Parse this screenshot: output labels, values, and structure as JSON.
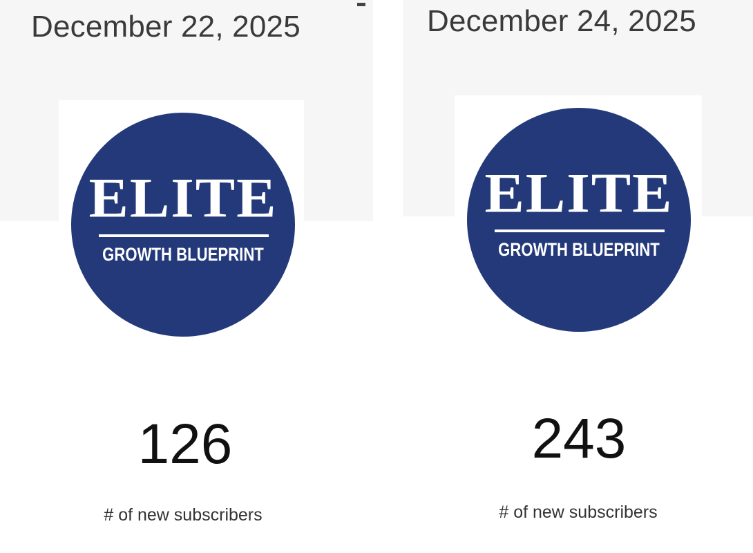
{
  "panels": [
    {
      "date": "December 22, 2025",
      "logo": {
        "title": "ELITE",
        "subtitle": "GROWTH BLUEPRINT"
      },
      "count": "126",
      "count_label": "# of new subscribers"
    },
    {
      "date": "December 24, 2025",
      "logo": {
        "title": "ELITE",
        "subtitle": "GROWTH BLUEPRINT"
      },
      "count": "243",
      "count_label": "# of new subscribers"
    }
  ],
  "colors": {
    "logo_blue": "#23397a",
    "background_gray": "#f6f6f6"
  }
}
